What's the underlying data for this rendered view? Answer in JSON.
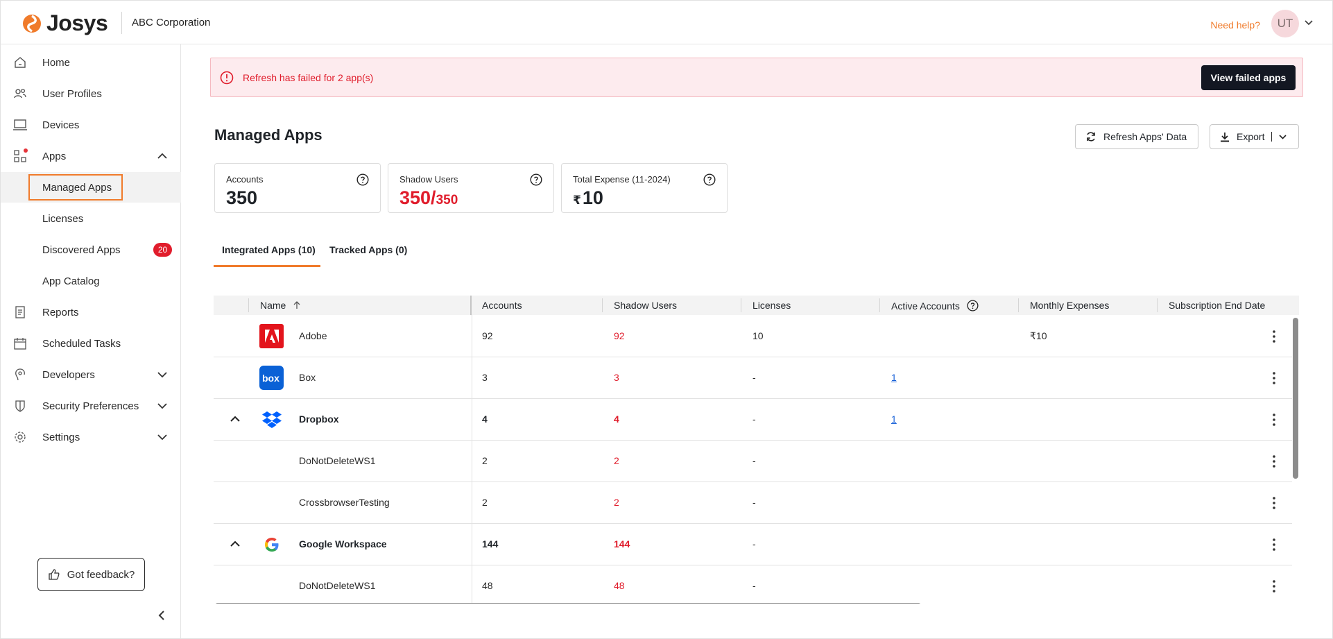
{
  "header": {
    "logo_text": "Josys",
    "org_name": "ABC Corporation",
    "need_help": "Need help?",
    "avatar_initials": "UT"
  },
  "sidebar": {
    "items": [
      {
        "label": "Home",
        "icon": "home-icon"
      },
      {
        "label": "User Profiles",
        "icon": "users-icon"
      },
      {
        "label": "Devices",
        "icon": "laptop-icon"
      },
      {
        "label": "Apps",
        "icon": "apps-grid-icon"
      },
      {
        "label": "Reports",
        "icon": "report-icon"
      },
      {
        "label": "Scheduled Tasks",
        "icon": "calendar-icon"
      },
      {
        "label": "Developers",
        "icon": "developer-icon"
      },
      {
        "label": "Security Preferences",
        "icon": "shield-icon"
      },
      {
        "label": "Settings",
        "icon": "gear-icon"
      }
    ],
    "apps_sub": [
      {
        "label": "Managed Apps"
      },
      {
        "label": "Licenses"
      },
      {
        "label": "Discovered Apps",
        "badge": "20"
      },
      {
        "label": "App Catalog"
      }
    ],
    "feedback_label": "Got feedback?"
  },
  "alert": {
    "text": "Refresh has failed for 2 app(s)",
    "button": "View failed apps",
    "color": "#e01c2b"
  },
  "page": {
    "title": "Managed Apps",
    "refresh_label": "Refresh Apps' Data",
    "export_label": "Export"
  },
  "cards": {
    "accounts": {
      "label": "Accounts",
      "value": "350"
    },
    "shadow": {
      "label": "Shadow Users",
      "value": "350/",
      "total": "350"
    },
    "expense": {
      "label": "Total Expense",
      "period": "(11-2024)",
      "currency": "₹",
      "value": "10"
    }
  },
  "tabs": [
    {
      "label": "Integrated Apps (10)",
      "active": true
    },
    {
      "label": "Tracked Apps (0)",
      "active": false
    }
  ],
  "table": {
    "columns": [
      "Name",
      "Accounts",
      "Shadow Users",
      "Licenses",
      "Active Accounts",
      "Monthly Expenses",
      "Subscription End Date"
    ],
    "rows": [
      {
        "name": "Adobe",
        "accounts": "92",
        "shadow": "92",
        "licenses": "10",
        "active": "",
        "expenses": "₹10",
        "logo": "adobe"
      },
      {
        "name": "Box",
        "accounts": "3",
        "shadow": "3",
        "licenses": "-",
        "active": "1",
        "expenses": "",
        "logo": "box"
      },
      {
        "name": "Dropbox",
        "accounts": "4",
        "shadow": "4",
        "licenses": "-",
        "active": "1",
        "expenses": "",
        "logo": "dropbox"
      },
      {
        "name": "DoNotDeleteWS1",
        "accounts": "2",
        "shadow": "2",
        "licenses": "-",
        "active": "",
        "expenses": ""
      },
      {
        "name": "CrossbrowserTesting",
        "accounts": "2",
        "shadow": "2",
        "licenses": "-",
        "active": "",
        "expenses": ""
      },
      {
        "name": "Google Workspace",
        "accounts": "144",
        "shadow": "144",
        "licenses": "-",
        "active": "",
        "expenses": "",
        "logo": "google"
      },
      {
        "name": "DoNotDeleteWS1",
        "accounts": "48",
        "shadow": "48",
        "licenses": "-",
        "active": "",
        "expenses": ""
      }
    ]
  },
  "colors": {
    "accent": "#f07b2b",
    "danger": "#e01c2b",
    "link": "#1a62d8"
  }
}
